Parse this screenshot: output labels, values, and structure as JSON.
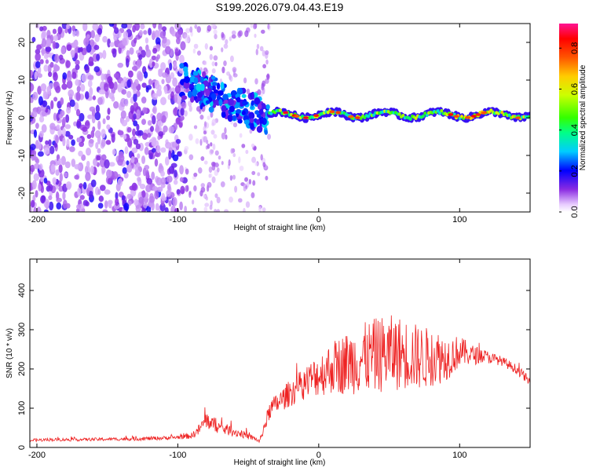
{
  "title": "S199.2026.079.04.43.E19",
  "chart_data": [
    {
      "type": "heatmap",
      "xlabel": "Height of straight line (km)",
      "ylabel": "Frequency (Hz)",
      "xlim": [
        -205,
        150
      ],
      "ylim": [
        -25,
        25
      ],
      "xticks": [
        -200,
        -100,
        0,
        100
      ],
      "yticks": [
        -20,
        -10,
        0,
        10,
        20
      ],
      "colorbar": {
        "label": "Normalized spectral amplitude",
        "range": [
          0,
          0.92
        ],
        "ticks": [
          0.0,
          0.2,
          0.4,
          0.6,
          0.8
        ],
        "tick_labels": [
          "0.0",
          "0.2",
          "0.4",
          "0.6",
          "0.8"
        ]
      },
      "description_regions": [
        {
          "x_range": [
            -205,
            -95
          ],
          "freq_range": [
            -25,
            25
          ],
          "amplitude": "low, scattered noise"
        },
        {
          "x_range": [
            -95,
            -35
          ],
          "freq_range": [
            -8,
            10
          ],
          "amplitude": "moderate, track forming from +10 Hz toward 0 Hz"
        },
        {
          "x_range": [
            -35,
            150
          ],
          "freq_range": [
            -1,
            3
          ],
          "amplitude": "high, narrow line near 0 Hz"
        }
      ]
    },
    {
      "type": "line",
      "xlabel": "Height of straight line (km)",
      "ylabel": "SNR (10 * v/v)",
      "xlim": [
        -205,
        150
      ],
      "ylim": [
        0,
        480
      ],
      "xticks": [
        -200,
        -100,
        0,
        100
      ],
      "yticks": [
        0,
        100,
        200,
        300,
        400
      ],
      "series": [
        {
          "name": "SNR",
          "color": "#ee2222",
          "x": [
            -205,
            -190,
            -170,
            -150,
            -130,
            -110,
            -100,
            -90,
            -85,
            -80,
            -75,
            -70,
            -65,
            -60,
            -55,
            -50,
            -45,
            -42,
            -38,
            -34,
            -30,
            -25,
            -20,
            -15,
            -10,
            -5,
            0,
            5,
            10,
            15,
            20,
            25,
            30,
            35,
            40,
            45,
            50,
            55,
            60,
            65,
            70,
            75,
            80,
            85,
            90,
            95,
            100,
            105,
            110,
            115,
            120,
            125,
            130,
            135,
            140,
            145,
            150
          ],
          "y": [
            18,
            20,
            20,
            21,
            22,
            24,
            26,
            30,
            45,
            70,
            60,
            50,
            45,
            40,
            35,
            28,
            22,
            15,
            60,
            100,
            110,
            125,
            140,
            150,
            165,
            175,
            185,
            195,
            205,
            210,
            215,
            220,
            225,
            230,
            235,
            238,
            240,
            240,
            240,
            235,
            230,
            228,
            230,
            230,
            228,
            235,
            245,
            240,
            235,
            235,
            230,
            225,
            220,
            210,
            200,
            185,
            165
          ],
          "noise": [
            4,
            4,
            4,
            4,
            5,
            5,
            5,
            8,
            14,
            22,
            20,
            16,
            14,
            12,
            10,
            8,
            6,
            4,
            18,
            24,
            26,
            30,
            35,
            38,
            42,
            48,
            55,
            62,
            68,
            75,
            80,
            85,
            90,
            92,
            95,
            98,
            98,
            96,
            92,
            88,
            85,
            80,
            75,
            70,
            60,
            50,
            40,
            32,
            25,
            20,
            16,
            14,
            12,
            12,
            12,
            12,
            12
          ]
        }
      ]
    }
  ]
}
